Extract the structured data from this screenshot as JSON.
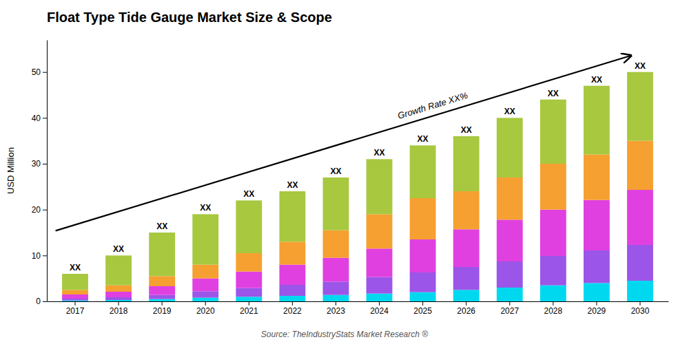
{
  "chart_data": {
    "type": "bar",
    "title": "Float Type Tide Gauge Market Size & Scope",
    "ylabel": "USD Million",
    "source": "Source: TheIndustryStats Market Research ®",
    "annotation": "Growth Rate XX%",
    "bar_label": "XX",
    "categories": [
      "2017",
      "2018",
      "2019",
      "2020",
      "2021",
      "2022",
      "2023",
      "2024",
      "2025",
      "2026",
      "2027",
      "2028",
      "2029",
      "2030"
    ],
    "series": [
      {
        "color": "#00d8f0",
        "values": [
          0.2,
          0.3,
          0.5,
          0.8,
          1.0,
          1.2,
          1.4,
          1.7,
          2.0,
          2.5,
          3.0,
          3.5,
          4.0,
          4.5
        ]
      },
      {
        "color": "#9b55e8",
        "values": [
          0.4,
          0.6,
          0.9,
          1.4,
          1.9,
          2.4,
          2.9,
          3.6,
          4.3,
          5.0,
          5.7,
          6.4,
          7.1,
          7.8
        ]
      },
      {
        "color": "#e040e0",
        "values": [
          0.9,
          1.2,
          1.9,
          2.8,
          3.6,
          4.4,
          5.2,
          6.2,
          7.2,
          8.2,
          9.1,
          10.1,
          11.0,
          12.0
        ]
      },
      {
        "color": "#f5a030",
        "values": [
          1.0,
          1.4,
          2.2,
          3.0,
          4.0,
          5.0,
          6.0,
          7.5,
          9.0,
          8.3,
          9.2,
          10.0,
          9.9,
          10.7
        ]
      },
      {
        "color": "#a8c840",
        "values": [
          3.5,
          6.5,
          9.5,
          11.0,
          11.5,
          11.0,
          11.5,
          12.0,
          11.5,
          12.0,
          13.0,
          14.0,
          15.0,
          15.0
        ]
      }
    ],
    "stacked": true,
    "ylim": [
      0,
      57
    ],
    "yticks": [
      0,
      10,
      20,
      30,
      40,
      50
    ],
    "grid": false
  }
}
